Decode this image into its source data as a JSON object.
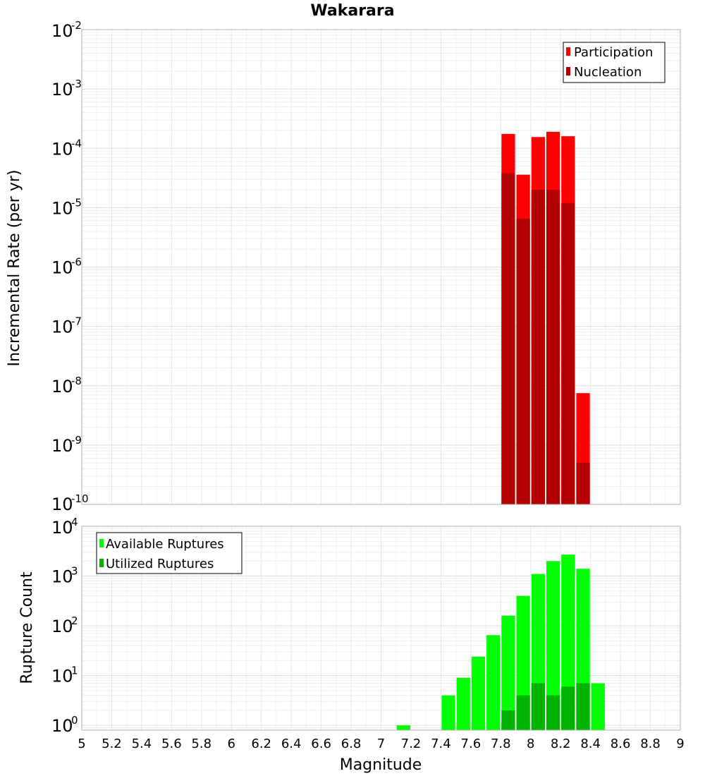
{
  "chart_data": [
    {
      "type": "bar",
      "title": "Wakarara",
      "xlabel": "",
      "ylabel": "Incremental Rate (per yr)",
      "yscale": "log",
      "xlim": [
        5,
        9
      ],
      "ylim": [
        1e-10,
        0.01
      ],
      "y_ticks": [
        {
          "base": "10",
          "exp": "-2",
          "value": 0.01
        },
        {
          "base": "10",
          "exp": "-3",
          "value": 0.001
        },
        {
          "base": "10",
          "exp": "-4",
          "value": 0.0001
        },
        {
          "base": "10",
          "exp": "-5",
          "value": 1e-05
        },
        {
          "base": "10",
          "exp": "-6",
          "value": 1e-06
        },
        {
          "base": "10",
          "exp": "-7",
          "value": 1e-07
        },
        {
          "base": "10",
          "exp": "-8",
          "value": 1e-08
        },
        {
          "base": "10",
          "exp": "-9",
          "value": 1e-09
        },
        {
          "base": "10",
          "exp": "-10",
          "value": 1e-10
        }
      ],
      "legend_position": "top-right",
      "grid": true,
      "bin_width": 0.1,
      "x": [
        7.85,
        7.95,
        8.05,
        8.15,
        8.25,
        8.35
      ],
      "series": [
        {
          "name": "Participation",
          "color": "#ff0000",
          "values": [
            0.000175,
            3.6e-05,
            0.000155,
            0.00019,
            0.00016,
            7.5e-09
          ]
        },
        {
          "name": "Nucleation",
          "color": "#b30000",
          "values": [
            3.8e-05,
            6.5e-06,
            2e-05,
            2e-05,
            1.2e-05,
            5e-10
          ]
        }
      ]
    },
    {
      "type": "bar",
      "title": "",
      "xlabel": "Magnitude",
      "ylabel": "Rupture Count",
      "yscale": "log",
      "xlim": [
        5,
        9
      ],
      "ylim": [
        0.8,
        10000
      ],
      "y_ticks": [
        {
          "base": "10",
          "exp": "4",
          "value": 10000
        },
        {
          "base": "10",
          "exp": "3",
          "value": 1000
        },
        {
          "base": "10",
          "exp": "2",
          "value": 100
        },
        {
          "base": "10",
          "exp": "1",
          "value": 10
        },
        {
          "base": "10",
          "exp": "0",
          "value": 1
        }
      ],
      "x_ticks": [
        "5",
        "5.2",
        "5.4",
        "5.6",
        "5.8",
        "6",
        "6.2",
        "6.4",
        "6.6",
        "6.8",
        "7",
        "7.2",
        "7.4",
        "7.6",
        "7.8",
        "8",
        "8.2",
        "8.4",
        "8.6",
        "8.8",
        "9"
      ],
      "legend_position": "top-left",
      "grid": true,
      "bin_width": 0.1,
      "series": [
        {
          "name": "Available Ruptures",
          "color": "#00ff00",
          "x": [
            7.15,
            7.45,
            7.55,
            7.65,
            7.75,
            7.85,
            7.95,
            8.05,
            8.15,
            8.25,
            8.35,
            8.45
          ],
          "values": [
            1,
            4,
            9,
            24,
            65,
            160,
            400,
            1100,
            2000,
            2700,
            1400,
            7
          ]
        },
        {
          "name": "Utilized Ruptures",
          "color": "#00b300",
          "x": [
            7.85,
            7.95,
            8.05,
            8.15,
            8.25,
            8.35
          ],
          "values": [
            2,
            4,
            7,
            4,
            6,
            7
          ]
        }
      ]
    }
  ]
}
